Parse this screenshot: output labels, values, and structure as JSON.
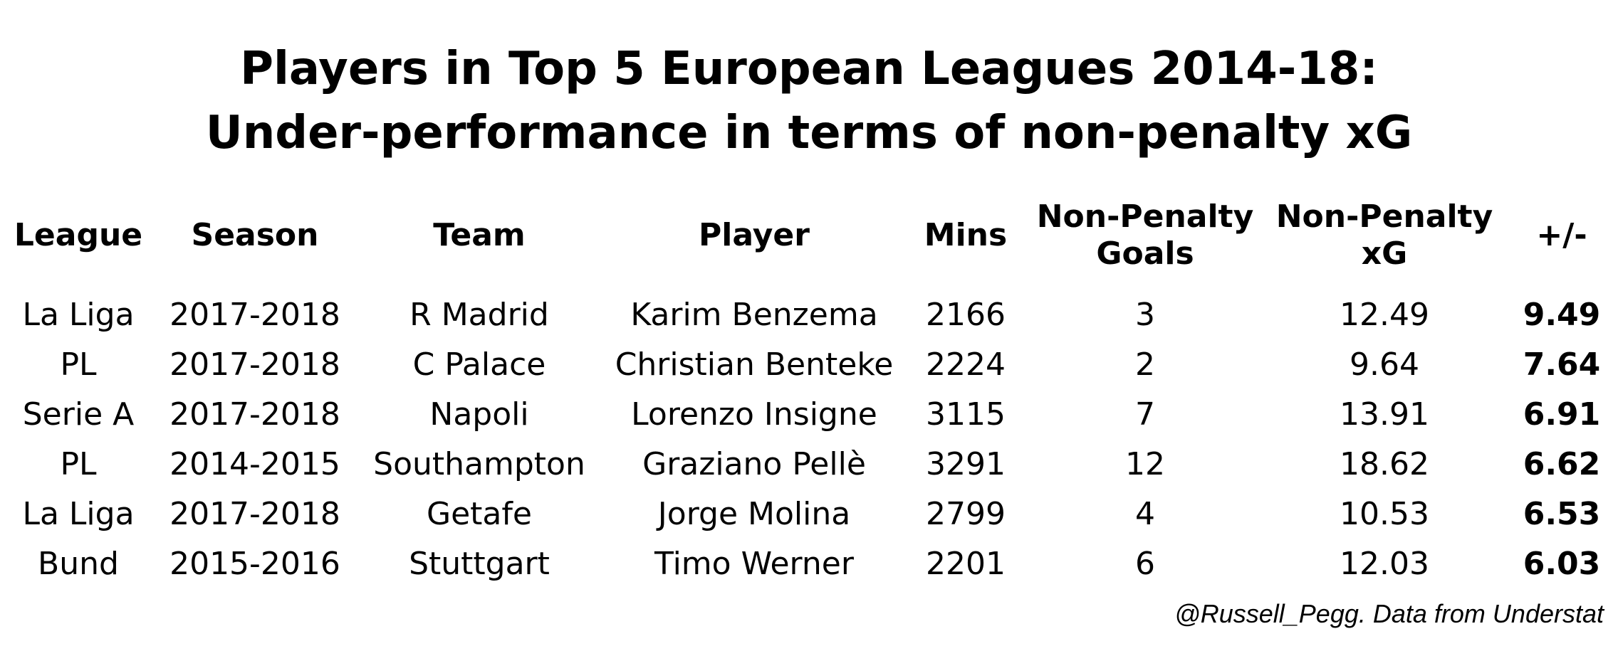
{
  "chart_data": {
    "type": "table",
    "title": "Players in Top 5 European Leagues 2014-18:",
    "subtitle": "Under-performance in terms of non-penalty xG",
    "columns": [
      {
        "label": "League"
      },
      {
        "label": "Season"
      },
      {
        "label": "Team"
      },
      {
        "label": "Player"
      },
      {
        "label": "Mins"
      },
      {
        "label": "Non-Penalty Goals",
        "line1": "Non-Penalty",
        "line2": "Goals"
      },
      {
        "label": "Non-Penalty xG",
        "line1": "Non-Penalty",
        "line2": "xG"
      },
      {
        "label": "+/-"
      }
    ],
    "rows": [
      [
        "La Liga",
        "2017-2018",
        "R Madrid",
        "Karim Benzema",
        "2166",
        "3",
        "12.49",
        "9.49"
      ],
      [
        "PL",
        "2017-2018",
        "C Palace",
        "Christian Benteke",
        "2224",
        "2",
        "9.64",
        "7.64"
      ],
      [
        "Serie A",
        "2017-2018",
        "Napoli",
        "Lorenzo Insigne",
        "3115",
        "7",
        "13.91",
        "6.91"
      ],
      [
        "PL",
        "2014-2015",
        "Southampton",
        "Graziano Pellè",
        "3291",
        "12",
        "18.62",
        "6.62"
      ],
      [
        "La Liga",
        "2017-2018",
        "Getafe",
        "Jorge Molina",
        "2799",
        "4",
        "10.53",
        "6.53"
      ],
      [
        "Bund",
        "2015-2016",
        "Stuttgart",
        "Timo Werner",
        "2201",
        "6",
        "12.03",
        "6.03"
      ]
    ],
    "bold_column": "+/-",
    "credit": "@Russell_Pegg. Data from Understat"
  }
}
